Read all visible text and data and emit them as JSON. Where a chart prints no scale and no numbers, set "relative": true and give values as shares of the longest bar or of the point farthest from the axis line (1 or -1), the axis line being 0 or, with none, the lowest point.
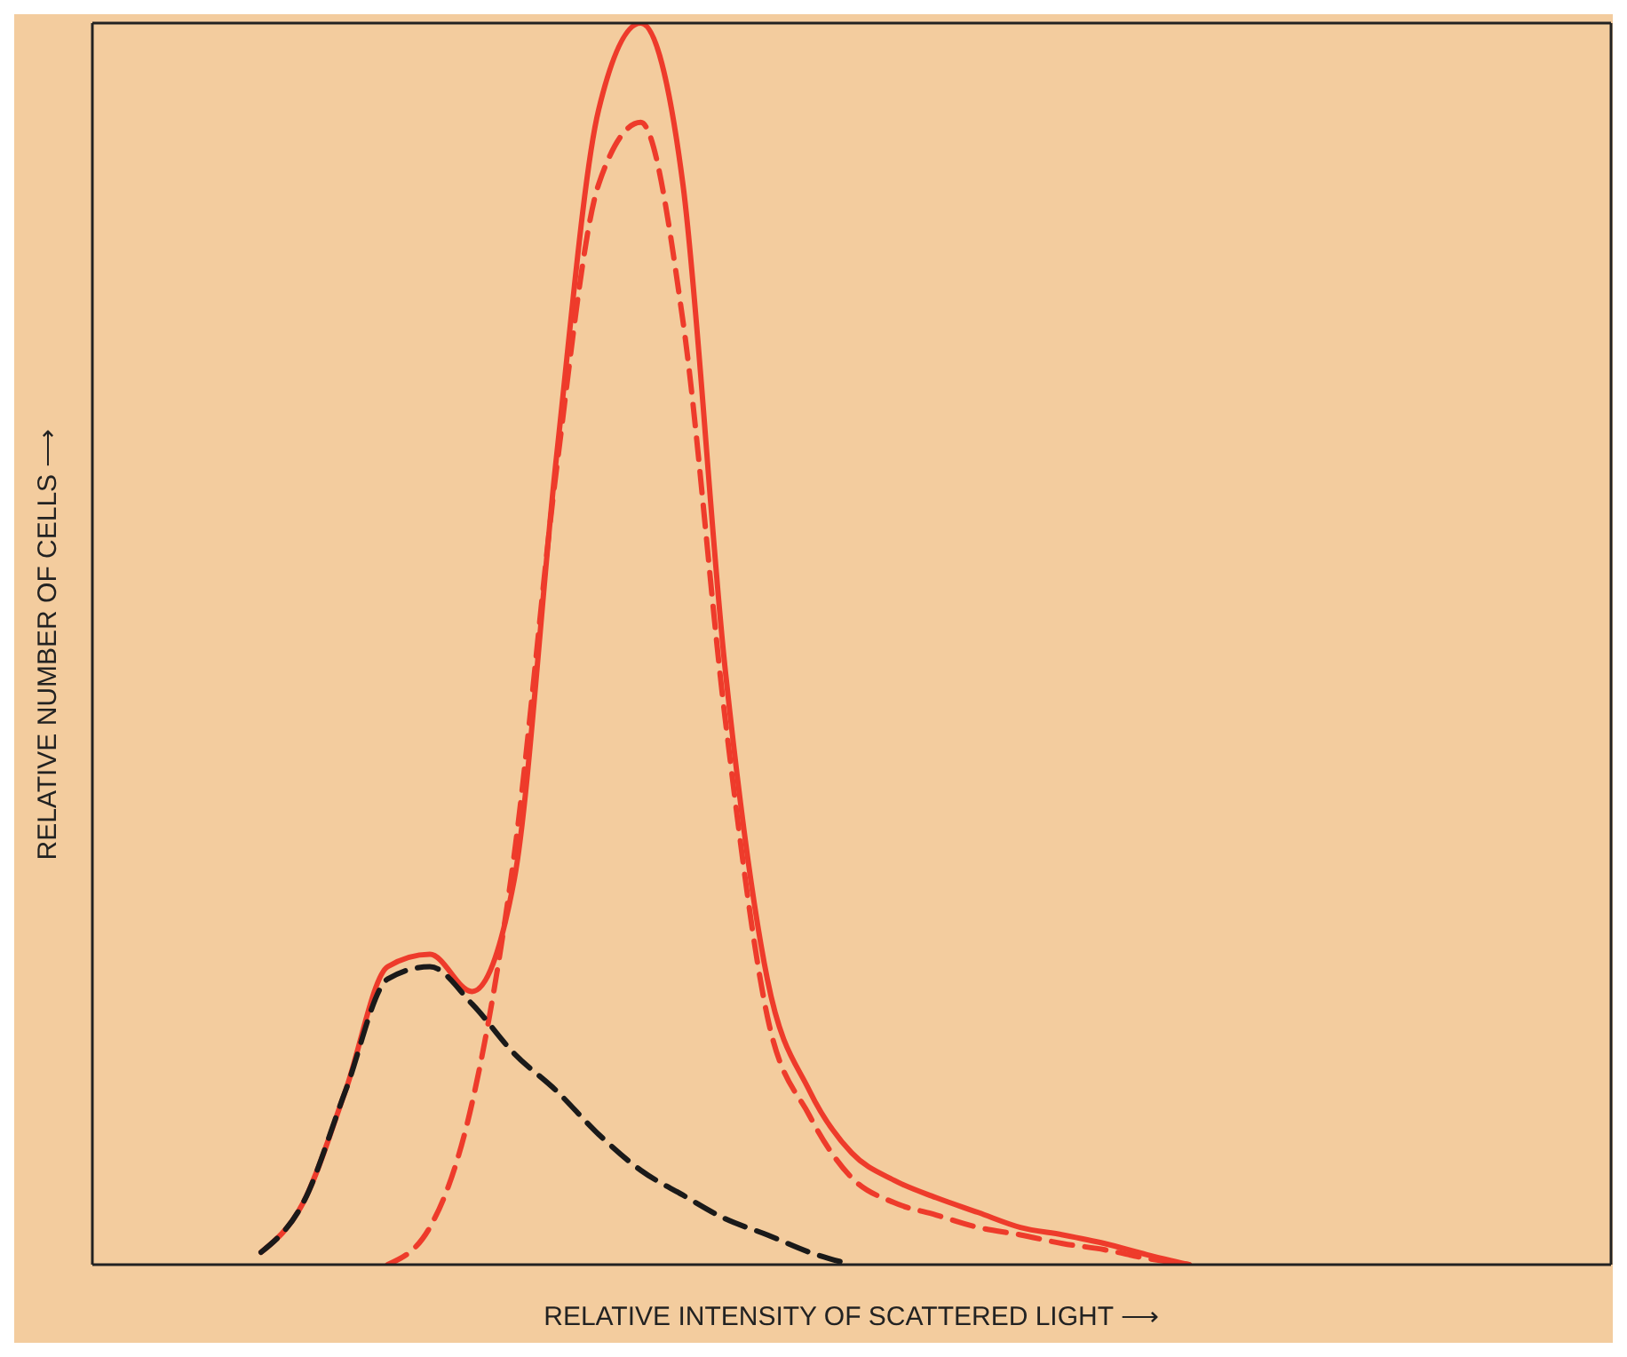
{
  "chart_data": {
    "type": "line",
    "relative": true,
    "xlabel": "RELATIVE INTENSITY OF SCATTERED LIGHT ⟶",
    "ylabel": "RELATIVE NUMBER OF CELLS ⟶",
    "marker": "none",
    "legend": false,
    "categories": [
      null,
      null,
      null,
      null,
      null,
      null,
      null,
      null,
      null,
      null,
      null,
      null,
      null,
      null,
      null,
      null,
      null,
      null,
      null,
      null,
      null,
      null,
      null,
      null,
      null,
      null,
      null,
      null,
      null,
      null,
      null,
      null,
      null,
      null,
      null,
      null,
      null
    ],
    "series": [
      {
        "color": "#ee3b2b",
        "line_style": "solid",
        "values": [
          null,
          null,
          null,
          null,
          0.01,
          0.05,
          0.14,
          0.24,
          0.25,
          0.22,
          0.31,
          0.65,
          0.93,
          1.0,
          0.87,
          0.48,
          0.23,
          0.14,
          0.09,
          0.068,
          0.054,
          0.042,
          0.03,
          0.024,
          0.017,
          0.008,
          0,
          null,
          null,
          null,
          null,
          null,
          null,
          null,
          null,
          null,
          null
        ]
      },
      {
        "color": "#ee3b2b",
        "line_style": "dashed",
        "values": [
          null,
          null,
          null,
          null,
          null,
          null,
          null,
          0,
          0.03,
          0.13,
          0.33,
          0.64,
          0.87,
          0.92,
          0.76,
          0.44,
          0.2,
          0.12,
          0.07,
          0.05,
          0.04,
          0.03,
          0.024,
          0.017,
          0.012,
          0.005,
          0,
          null,
          null,
          null,
          null,
          null,
          null,
          null,
          null,
          null,
          null
        ]
      },
      {
        "color": "#1a1a1a",
        "line_style": "dashed",
        "values": [
          null,
          null,
          null,
          null,
          0.01,
          0.05,
          0.14,
          0.23,
          0.24,
          0.21,
          0.17,
          0.14,
          0.105,
          0.076,
          0.056,
          0.037,
          0.024,
          0.01,
          0,
          null,
          null,
          null,
          null,
          null,
          null,
          null,
          null,
          null,
          null,
          null,
          null,
          null,
          null,
          null,
          null,
          null,
          null
        ]
      }
    ]
  }
}
